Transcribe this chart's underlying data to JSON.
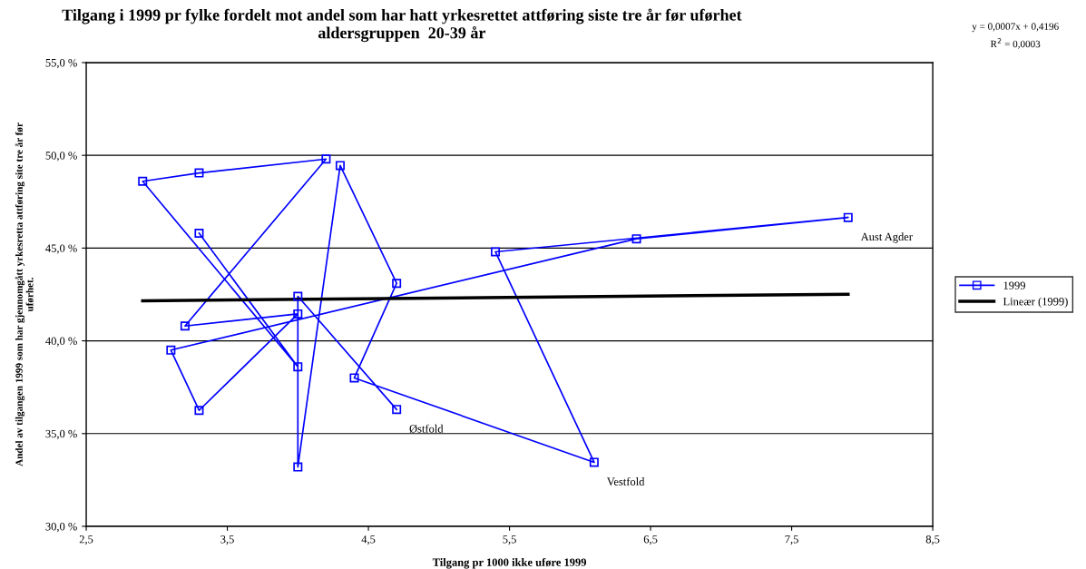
{
  "chart_data": {
    "type": "line",
    "title": "Tilgang i 1999 pr fylke fordelt mot andel som har hatt yrkesrettet attføring siste tre år før uførhet\naldersgruppen  20-39 år",
    "xlabel": "Tilgang pr 1000 ikke uføre 1999",
    "ylabel": "Andel av tilgangen 1999 som har gjennomgått yrkesretta attføring site tre år før\nuførhet.",
    "xlim": [
      2.5,
      8.5
    ],
    "xticks": [
      {
        "value": 2.5,
        "label": "2,5"
      },
      {
        "value": 3.5,
        "label": "3,5"
      },
      {
        "value": 4.5,
        "label": "4,5"
      },
      {
        "value": 5.5,
        "label": "5,5"
      },
      {
        "value": 6.5,
        "label": "6,5"
      },
      {
        "value": 7.5,
        "label": "7,5"
      },
      {
        "value": 8.5,
        "label": "8,5"
      }
    ],
    "ylim": [
      30,
      55
    ],
    "yticks": [
      {
        "value": 30,
        "label": "30,0 %"
      },
      {
        "value": 35,
        "label": "35,0 %"
      },
      {
        "value": 40,
        "label": "40,0 %"
      },
      {
        "value": 45,
        "label": "45,0 %"
      },
      {
        "value": 50,
        "label": "50,0 %"
      },
      {
        "value": 55,
        "label": "55,0 %"
      }
    ],
    "grid": "y",
    "legend": "right",
    "series": [
      {
        "name": "1999",
        "color": "#0000ff",
        "marker": "square",
        "x": [
          3.3,
          4.0,
          2.9,
          3.3,
          4.2,
          3.2,
          4.0,
          3.3,
          3.1,
          6.4,
          7.9,
          5.4,
          6.1,
          4.4,
          4.7,
          4.3,
          4.0,
          4.0,
          4.7
        ],
        "values": [
          45.8,
          38.6,
          48.6,
          49.05,
          49.8,
          40.8,
          41.45,
          36.25,
          39.5,
          45.5,
          46.65,
          44.8,
          33.45,
          38.0,
          43.1,
          49.45,
          33.2,
          42.4,
          36.3
        ]
      },
      {
        "name": "Lineær (1999)",
        "color": "#000000",
        "marker": "none",
        "x": [
          2.9,
          7.9
        ],
        "values": [
          42.16,
          42.51
        ]
      }
    ],
    "annotations": [
      {
        "text": "Aust Agder",
        "x": 7.9,
        "y": 46.65
      },
      {
        "text": "Vestfold",
        "x": 6.1,
        "y": 33.45
      },
      {
        "text": "Østfold",
        "x": 4.7,
        "y": 36.3
      },
      "y = 0,0007x + 0,4196",
      "R$^{2}$ = 0,0003"
    ]
  }
}
